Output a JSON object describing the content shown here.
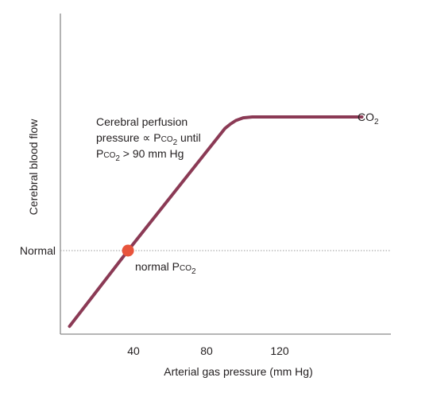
{
  "chart_data": {
    "type": "line",
    "xlabel": "Arterial gas pressure (mm Hg)",
    "ylabel": "Cerebral blood flow",
    "x_ticks": [
      40,
      80,
      120
    ],
    "y_ticks": [
      {
        "label": "Normal",
        "value": 1.0
      }
    ],
    "xlim": [
      0,
      180
    ],
    "series": [
      {
        "name": "CO2",
        "color": "#8b3a55",
        "points": [
          {
            "x": 5,
            "y": 0.15
          },
          {
            "x": 37,
            "y": 1.0
          },
          {
            "x": 90,
            "y": 2.37
          },
          {
            "x": 93,
            "y": 2.42
          },
          {
            "x": 96,
            "y": 2.46
          },
          {
            "x": 100,
            "y": 2.49
          },
          {
            "x": 105,
            "y": 2.5
          },
          {
            "x": 165,
            "y": 2.5
          }
        ]
      }
    ],
    "reference_line": {
      "label": "Normal",
      "y": 1.0,
      "style": "dotted"
    },
    "marker": {
      "x": 37,
      "y": 1.0,
      "label_main": "normal P",
      "label_sub": "CO",
      "label_subscript": "2",
      "color": "#e8543c"
    },
    "annotation": {
      "line1": "Cerebral perfusion",
      "line2_prefix": "pressure ∝ P",
      "line2_sub": "CO",
      "line2_subscript": "2",
      "line2_suffix": " until",
      "line3_prefix": "P",
      "line3_sub": "CO",
      "line3_subscript": "2",
      "line3_suffix": " > 90 mm Hg"
    },
    "series_label": {
      "main": "CO",
      "subscript": "2"
    },
    "grid": false,
    "legend": "none"
  },
  "colors": {
    "axis": "#8a8a8a",
    "curve": "#8b3a55",
    "marker": "#e8543c",
    "reference": "#9a9a9a",
    "text": "#231f20"
  }
}
